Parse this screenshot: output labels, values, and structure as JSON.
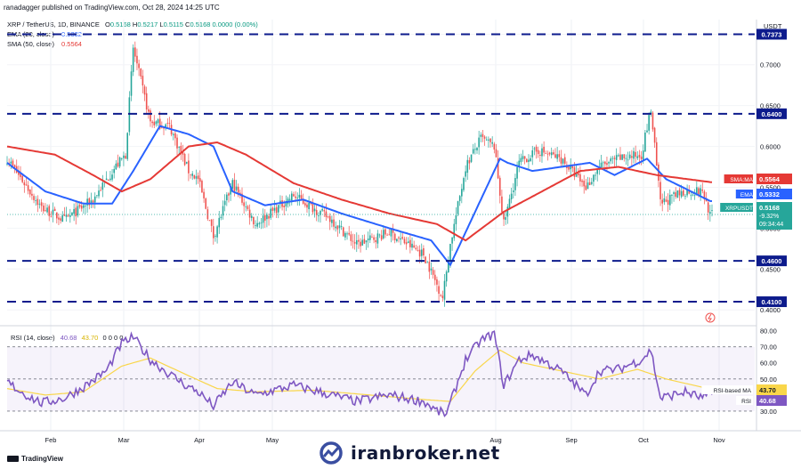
{
  "header": {
    "publisher": "ranadagger published on TradingView.com, Oct 28, 2024 14:25 UTC",
    "symbol_line": "XRP / TetherUS, 1D, BINANCE",
    "ohlc": {
      "o_label": "O",
      "o": "0.5168",
      "h_label": "H",
      "h": "0.5217",
      "l_label": "L",
      "l": "0.5115",
      "c_label": "C",
      "c": "0.5168",
      "change": "0.0000 (0.00%)"
    },
    "ema_label": "EMA (20, close)",
    "ema_value": "0.5332",
    "sma_label": "SMA (50, close)",
    "sma_value": "0.5564",
    "rsi_label": "RSI (14, close)",
    "rsi_value": "40.68",
    "rsi_ma_value": "43.70",
    "rsi_extra": "0 0 0 0"
  },
  "currency": "USDT",
  "footer": {
    "tv_logo": "TradingView",
    "brand": "iranbroker.net"
  },
  "colors": {
    "up": "#26a69a",
    "down": "#ef5350",
    "ema": "#2962ff",
    "sma": "#e53935",
    "rsi": "#7e57c2",
    "rsi_ma": "#f9d64a",
    "support": "#0d1b8c",
    "price_line": "#26a69a"
  },
  "chart_data": [
    {
      "type": "candlestick",
      "title": "XRP / TetherUS, 1D, BINANCE",
      "x_labels": [
        "Feb",
        "Mar",
        "Apr",
        "May",
        "Aug",
        "Sep",
        "Oct",
        "Nov"
      ],
      "y_ticks": [
        "0.4000",
        "0.4500",
        "0.5000",
        "0.5500",
        "0.6000",
        "0.6500",
        "0.7000",
        "0.7373"
      ],
      "ylim": [
        0.385,
        0.74
      ],
      "horizontal_levels": [
        {
          "label": "0.7373",
          "value": 0.7373
        },
        {
          "label": "0.6400",
          "value": 0.64
        },
        {
          "label": "0.4600",
          "value": 0.46
        },
        {
          "label": "0.4100",
          "value": 0.41
        }
      ],
      "price_tags": [
        {
          "label": "SMA:MA",
          "value_text": "0.5564",
          "value": 0.5564,
          "color": "#e53935"
        },
        {
          "label": "EMA",
          "value_text": "0.5332",
          "value": 0.5332,
          "color": "#2962ff"
        },
        {
          "label": "XRPUSDT",
          "value_text": "0.5168",
          "value": 0.5168,
          "color": "#26a69a",
          "extra": [
            "-9.32%",
            "09:34:44"
          ]
        }
      ],
      "series": [
        {
          "name": "XRPUSDT",
          "style": "candles",
          "anchors": [
            [
              0,
              0.585
            ],
            [
              18,
              0.525
            ],
            [
              30,
              0.51
            ],
            [
              45,
              0.535
            ],
            [
              55,
              0.57
            ],
            [
              62,
              0.59
            ],
            [
              66,
              0.72
            ],
            [
              75,
              0.63
            ],
            [
              85,
              0.625
            ],
            [
              95,
              0.57
            ],
            [
              100,
              0.56
            ],
            [
              108,
              0.49
            ],
            [
              118,
              0.555
            ],
            [
              130,
              0.505
            ],
            [
              150,
              0.54
            ],
            [
              170,
              0.51
            ],
            [
              183,
              0.48
            ],
            [
              200,
              0.495
            ],
            [
              218,
              0.468
            ],
            [
              228,
              0.415
            ],
            [
              232,
              0.48
            ],
            [
              240,
              0.575
            ],
            [
              248,
              0.61
            ],
            [
              255,
              0.6
            ],
            [
              260,
              0.505
            ],
            [
              268,
              0.58
            ],
            [
              278,
              0.595
            ],
            [
              290,
              0.585
            ],
            [
              303,
              0.55
            ],
            [
              310,
              0.575
            ],
            [
              320,
              0.585
            ],
            [
              332,
              0.59
            ],
            [
              337,
              0.645
            ],
            [
              342,
              0.53
            ],
            [
              355,
              0.545
            ],
            [
              364,
              0.545
            ],
            [
              368,
              0.5168
            ]
          ]
        },
        {
          "name": "EMA (20, close)",
          "style": "line",
          "color": "#2962ff",
          "anchors": [
            [
              0,
              0.58
            ],
            [
              20,
              0.545
            ],
            [
              40,
              0.53
            ],
            [
              55,
              0.53
            ],
            [
              66,
              0.57
            ],
            [
              80,
              0.625
            ],
            [
              95,
              0.615
            ],
            [
              108,
              0.6
            ],
            [
              118,
              0.545
            ],
            [
              135,
              0.528
            ],
            [
              155,
              0.535
            ],
            [
              175,
              0.518
            ],
            [
              200,
              0.5
            ],
            [
              222,
              0.485
            ],
            [
              232,
              0.455
            ],
            [
              245,
              0.52
            ],
            [
              258,
              0.585
            ],
            [
              262,
              0.58
            ],
            [
              275,
              0.57
            ],
            [
              290,
              0.575
            ],
            [
              305,
              0.58
            ],
            [
              318,
              0.565
            ],
            [
              335,
              0.585
            ],
            [
              345,
              0.56
            ],
            [
              358,
              0.545
            ],
            [
              368,
              0.5332
            ]
          ]
        },
        {
          "name": "SMA (50, close)",
          "style": "line",
          "color": "#e53935",
          "anchors": [
            [
              0,
              0.6
            ],
            [
              25,
              0.59
            ],
            [
              45,
              0.565
            ],
            [
              60,
              0.545
            ],
            [
              75,
              0.56
            ],
            [
              95,
              0.6
            ],
            [
              110,
              0.605
            ],
            [
              125,
              0.59
            ],
            [
              150,
              0.555
            ],
            [
              175,
              0.535
            ],
            [
              200,
              0.518
            ],
            [
              225,
              0.505
            ],
            [
              240,
              0.485
            ],
            [
              260,
              0.52
            ],
            [
              280,
              0.545
            ],
            [
              300,
              0.57
            ],
            [
              320,
              0.575
            ],
            [
              340,
              0.565
            ],
            [
              368,
              0.5564
            ]
          ]
        }
      ]
    },
    {
      "type": "line",
      "title": "RSI (14, close)",
      "y_ticks": [
        "30.00",
        "50.00",
        "60.00",
        "70.00",
        "80.00"
      ],
      "ylim": [
        20,
        82
      ],
      "horizontal_levels": [
        {
          "label": "70.00",
          "value": 70
        },
        {
          "label": "50.00",
          "value": 50
        },
        {
          "label": "30.00",
          "value": 30
        }
      ],
      "price_tags": [
        {
          "label": "RSI-based MA",
          "value_text": "43.70",
          "value": 43.7,
          "color": "#f9d64a"
        },
        {
          "label": "RSI",
          "value_text": "40.68",
          "value": 40.68,
          "color": "#7e57c2"
        }
      ],
      "series": [
        {
          "name": "RSI",
          "color": "#7e57c2",
          "anchors": [
            [
              0,
              48
            ],
            [
              10,
              40
            ],
            [
              18,
              35
            ],
            [
              30,
              38
            ],
            [
              40,
              45
            ],
            [
              52,
              55
            ],
            [
              60,
              72
            ],
            [
              66,
              76
            ],
            [
              75,
              62
            ],
            [
              85,
              53
            ],
            [
              95,
              45
            ],
            [
              100,
              42
            ],
            [
              108,
              33
            ],
            [
              118,
              48
            ],
            [
              130,
              40
            ],
            [
              150,
              46
            ],
            [
              170,
              40
            ],
            [
              183,
              36
            ],
            [
              200,
              40
            ],
            [
              218,
              36
            ],
            [
              225,
              30
            ],
            [
              230,
              28
            ],
            [
              240,
              62
            ],
            [
              248,
              74
            ],
            [
              255,
              78
            ],
            [
              260,
              46
            ],
            [
              268,
              62
            ],
            [
              275,
              65
            ],
            [
              290,
              55
            ],
            [
              303,
              40
            ],
            [
              310,
              55
            ],
            [
              320,
              56
            ],
            [
              332,
              62
            ],
            [
              337,
              68
            ],
            [
              342,
              38
            ],
            [
              355,
              42
            ],
            [
              364,
              38
            ],
            [
              368,
              40.68
            ]
          ]
        },
        {
          "name": "RSI-based MA",
          "color": "#f9d64a",
          "anchors": [
            [
              0,
              44
            ],
            [
              20,
              40
            ],
            [
              40,
              42
            ],
            [
              60,
              58
            ],
            [
              75,
              63
            ],
            [
              95,
              52
            ],
            [
              110,
              44
            ],
            [
              130,
              42
            ],
            [
              160,
              43
            ],
            [
              190,
              40
            ],
            [
              220,
              37
            ],
            [
              232,
              36
            ],
            [
              245,
              55
            ],
            [
              258,
              68
            ],
            [
              270,
              60
            ],
            [
              290,
              55
            ],
            [
              310,
              50
            ],
            [
              330,
              56
            ],
            [
              345,
              50
            ],
            [
              368,
              43.7
            ]
          ]
        }
      ]
    }
  ]
}
